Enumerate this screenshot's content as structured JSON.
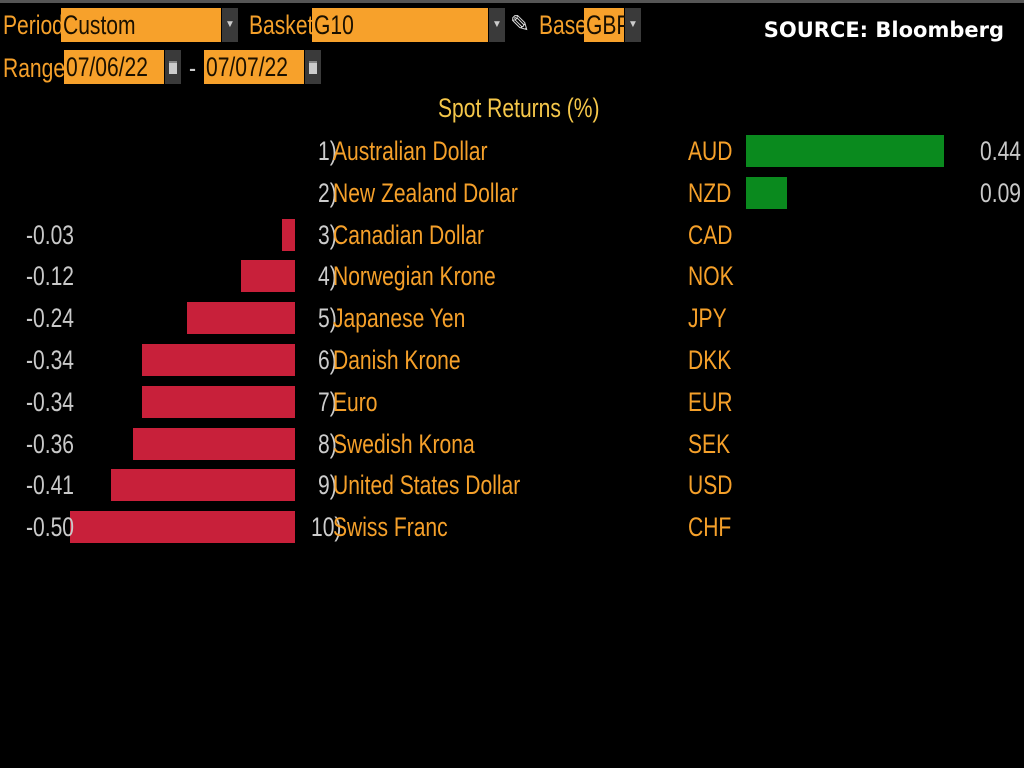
{
  "controls": {
    "period_label": "Period",
    "period_value": "Custom",
    "basket_label": "Basket",
    "basket_value": "G10",
    "base_label": "Base",
    "base_value": "GBP",
    "range_label": "Range",
    "range_start": "07/06/22",
    "range_sep": "-",
    "range_end": "07/07/22"
  },
  "source": "SOURCE: Bloomberg",
  "colors": {
    "positive": "#0a8a1e",
    "negative": "#c8203a",
    "accent": "#f7a12b"
  },
  "chart_data": {
    "type": "bar",
    "title": "Spot Returns (%)",
    "categories": [
      "Australian Dollar",
      "New Zealand Dollar",
      "Canadian Dollar",
      "Norwegian Krone",
      "Japanese Yen",
      "Danish Krone",
      "Euro",
      "Swedish Krona",
      "United States Dollar",
      "Swiss Franc"
    ],
    "codes": [
      "AUD",
      "NZD",
      "CAD",
      "NOK",
      "JPY",
      "DKK",
      "EUR",
      "SEK",
      "USD",
      "CHF"
    ],
    "ranks": [
      "1)",
      "2)",
      "3)",
      "4)",
      "5)",
      "6)",
      "7)",
      "8)",
      "9)",
      "10)"
    ],
    "values": [
      0.44,
      0.09,
      -0.03,
      -0.12,
      -0.24,
      -0.34,
      -0.34,
      -0.36,
      -0.41,
      -0.5
    ],
    "labels": [
      "0.44",
      "0.09",
      "-0.03",
      "-0.12",
      "-0.24",
      "-0.34",
      "-0.34",
      "-0.36",
      "-0.41",
      "-0.50"
    ]
  }
}
